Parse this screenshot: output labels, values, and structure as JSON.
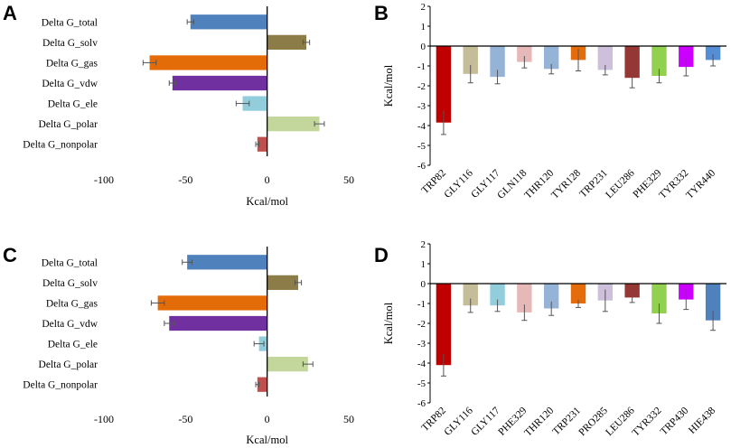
{
  "chart_data": [
    {
      "type": "bar",
      "orientation": "horizontal",
      "panel_label": "A",
      "categories": [
        "Delta G_total",
        "Delta G_solv",
        "Delta G_gas",
        "Delta G_vdw",
        "Delta G_ele",
        "Delta G_polar",
        "Delta G_nonpolar"
      ],
      "values": [
        -47,
        24,
        -72,
        -58,
        -15,
        32,
        -6
      ],
      "errors": [
        2,
        2,
        4,
        2,
        4,
        3,
        1
      ],
      "colors": [
        "#4f81bd",
        "#8c7d48",
        "#e36c09",
        "#7030a0",
        "#92cddc",
        "#c3d69b",
        "#c0504d"
      ],
      "xlim": [
        -100,
        50
      ],
      "xticks": [
        "-100",
        "-50",
        "0",
        "50"
      ],
      "xlabel": "Kcal/mol"
    },
    {
      "type": "bar",
      "orientation": "vertical",
      "panel_label": "B",
      "categories": [
        "TRP82",
        "GLY116",
        "GLY117",
        "GLN118",
        "THR120",
        "TYR128",
        "TRP231",
        "LEU286",
        "PHE329",
        "TYR332",
        "TYR440"
      ],
      "values": [
        -3.85,
        -1.4,
        -1.55,
        -0.8,
        -1.15,
        -0.7,
        -1.2,
        -1.6,
        -1.5,
        -1.05,
        -0.7
      ],
      "errors": [
        0.6,
        0.45,
        0.35,
        0.3,
        0.25,
        0.55,
        0.25,
        0.5,
        0.35,
        0.45,
        0.3
      ],
      "colors": [
        "#c00000",
        "#c4bd97",
        "#95b3d7",
        "#e6b9b8",
        "#95b3d7",
        "#e46c0a",
        "#ccc0da",
        "#953735",
        "#92d050",
        "#cc00ff",
        "#558ed5"
      ],
      "ylim": [
        -6,
        2
      ],
      "yticks": [
        "2",
        "1",
        "0",
        "-1",
        "-2",
        "-3",
        "-4",
        "-5",
        "-6"
      ],
      "ylabel": "Kcal/mol"
    },
    {
      "type": "bar",
      "orientation": "horizontal",
      "panel_label": "C",
      "categories": [
        "Delta G_total",
        "Delta G_solv",
        "Delta G_gas",
        "Delta G_vdw",
        "Delta G_ele",
        "Delta G_polar",
        "Delta G_nonpolar"
      ],
      "values": [
        -49,
        19,
        -67,
        -60,
        -5,
        25,
        -6
      ],
      "errors": [
        3,
        2,
        4,
        3,
        3,
        3,
        1
      ],
      "colors": [
        "#4f81bd",
        "#8c7d48",
        "#e36c09",
        "#7030a0",
        "#92cddc",
        "#c3d69b",
        "#c0504d"
      ],
      "xlim": [
        -100,
        50
      ],
      "xticks": [
        "-100",
        "-50",
        "0",
        "50"
      ],
      "xlabel": "Kcal/mol"
    },
    {
      "type": "bar",
      "orientation": "vertical",
      "panel_label": "D",
      "categories": [
        "TRP82",
        "GLY116",
        "GLY117",
        "PHE329",
        "THR120",
        "TRP231",
        "PRO285",
        "LEU286",
        "TYR332",
        "TRP430",
        "HIE438"
      ],
      "values": [
        -4.1,
        -1.1,
        -1.1,
        -1.45,
        -1.25,
        -1.0,
        -0.85,
        -0.7,
        -1.5,
        -0.8,
        -1.85
      ],
      "errors": [
        0.55,
        0.35,
        0.3,
        0.4,
        0.35,
        0.2,
        0.55,
        0.25,
        0.5,
        0.5,
        0.5
      ],
      "colors": [
        "#c00000",
        "#c4bd97",
        "#92cddc",
        "#e6b9b8",
        "#95b3d7",
        "#e46c0a",
        "#ccc0da",
        "#953735",
        "#92d050",
        "#cc00ff",
        "#4f81bd"
      ],
      "ylim": [
        -6,
        2
      ],
      "yticks": [
        "2",
        "1",
        "0",
        "-1",
        "-2",
        "-3",
        "-4",
        "-5",
        "-6"
      ],
      "ylabel": "Kcal/mol"
    }
  ]
}
